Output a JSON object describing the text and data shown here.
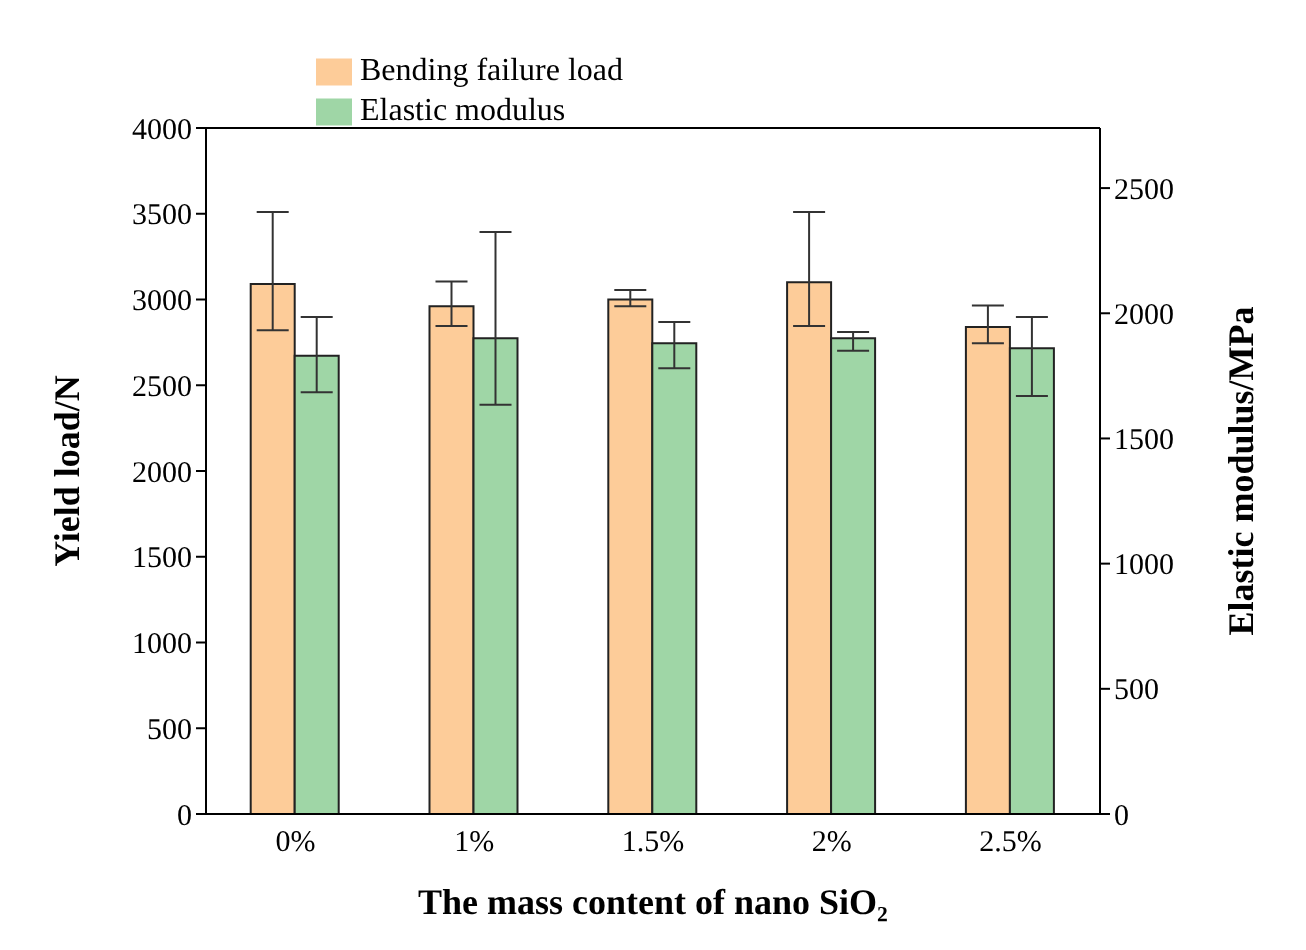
{
  "chart_data": {
    "type": "bar",
    "xlabel": "The mass content of nano SiO₂",
    "ylabel": "Yield load/N",
    "y2label": "Elastic modulus/MPa",
    "categories": [
      "0%",
      "1%",
      "1.5%",
      "2%",
      "2.5%"
    ],
    "series": [
      {
        "name": "Bending failure load",
        "color": "#fdcc99",
        "values": [
          3090,
          2960,
          3000,
          3100,
          2840
        ],
        "errors": [
          [
            2820,
            3510
          ],
          [
            2845,
            3105
          ],
          [
            2960,
            3055
          ],
          [
            2845,
            3510
          ],
          [
            2745,
            2965
          ]
        ]
      },
      {
        "name": "Elastic modulus",
        "color": "#9fd6a6",
        "axis": "y2",
        "values": [
          1830,
          1900,
          1880,
          1900,
          1860
        ],
        "errors": [
          [
            1685,
            1985
          ],
          [
            1635,
            2325
          ],
          [
            1780,
            1965
          ],
          [
            1850,
            1925
          ],
          [
            1670,
            1985
          ]
        ]
      }
    ],
    "ylim": [
      0,
      4000
    ],
    "yticks": [
      0,
      500,
      1000,
      1500,
      2000,
      2500,
      3000,
      3500,
      4000
    ],
    "y2lim": [
      0,
      2740
    ],
    "y2ticks": [
      0,
      500,
      1000,
      1500,
      2000,
      2500
    ],
    "grid": false,
    "legend": "top"
  }
}
